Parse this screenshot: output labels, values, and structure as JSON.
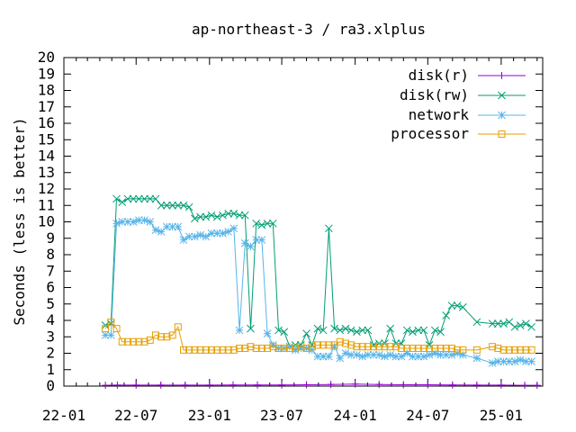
{
  "chart_data": {
    "type": "line",
    "title": "ap-northeast-3 / ra3.xlplus",
    "xlabel": "",
    "ylabel": "Seconds (less is better)",
    "ylim": [
      0,
      20
    ],
    "yticks": [
      "0",
      "1",
      "2",
      "3",
      "4",
      "5",
      "6",
      "7",
      "8",
      "9",
      "10",
      "11",
      "12",
      "13",
      "14",
      "15",
      "16",
      "17",
      "18",
      "19",
      "20"
    ],
    "xlim": [
      "2022-01-01",
      "2025-04-15"
    ],
    "xticks": [
      {
        "date": "2022-01-01",
        "label": "22-01"
      },
      {
        "date": "2022-07-01",
        "label": "22-07"
      },
      {
        "date": "2023-01-01",
        "label": "23-01"
      },
      {
        "date": "2023-07-01",
        "label": "23-07"
      },
      {
        "date": "2024-01-01",
        "label": "24-01"
      },
      {
        "date": "2024-07-01",
        "label": "24-07"
      },
      {
        "date": "2025-01-01",
        "label": "25-01"
      }
    ],
    "grid": false,
    "legend_position": "top-right",
    "series": [
      {
        "name": "disk(r)",
        "color": "#9400d3",
        "marker": "plus",
        "points": [
          [
            "2022-04-15",
            0.05
          ],
          [
            "2022-05-15",
            0.06
          ],
          [
            "2022-07-01",
            0.06
          ],
          [
            "2022-09-01",
            0.06
          ],
          [
            "2022-11-01",
            0.06
          ],
          [
            "2023-01-01",
            0.06
          ],
          [
            "2023-03-01",
            0.07
          ],
          [
            "2023-05-01",
            0.07
          ],
          [
            "2023-07-01",
            0.07
          ],
          [
            "2023-09-01",
            0.08
          ],
          [
            "2023-11-01",
            0.1
          ],
          [
            "2024-01-01",
            0.12
          ],
          [
            "2024-03-01",
            0.1
          ],
          [
            "2024-05-01",
            0.08
          ],
          [
            "2024-07-01",
            0.08
          ],
          [
            "2024-09-01",
            0.07
          ],
          [
            "2024-11-01",
            0.06
          ],
          [
            "2025-01-01",
            0.06
          ],
          [
            "2025-03-01",
            0.05
          ],
          [
            "2025-04-01",
            0.05
          ]
        ]
      },
      {
        "name": "disk(rw)",
        "color": "#009e73",
        "marker": "cross",
        "points": [
          [
            "2022-04-15",
            3.7
          ],
          [
            "2022-04-29",
            3.8
          ],
          [
            "2022-05-13",
            11.4
          ],
          [
            "2022-05-27",
            11.2
          ],
          [
            "2022-06-10",
            11.4
          ],
          [
            "2022-06-24",
            11.4
          ],
          [
            "2022-07-08",
            11.4
          ],
          [
            "2022-07-22",
            11.4
          ],
          [
            "2022-08-05",
            11.4
          ],
          [
            "2022-08-19",
            11.4
          ],
          [
            "2022-09-02",
            11.0
          ],
          [
            "2022-09-16",
            11.0
          ],
          [
            "2022-09-30",
            11.0
          ],
          [
            "2022-10-14",
            11.0
          ],
          [
            "2022-10-28",
            11.0
          ],
          [
            "2022-11-11",
            10.9
          ],
          [
            "2022-11-25",
            10.2
          ],
          [
            "2022-12-09",
            10.3
          ],
          [
            "2022-12-23",
            10.3
          ],
          [
            "2023-01-06",
            10.4
          ],
          [
            "2023-01-20",
            10.3
          ],
          [
            "2023-02-03",
            10.4
          ],
          [
            "2023-02-17",
            10.5
          ],
          [
            "2023-03-03",
            10.5
          ],
          [
            "2023-03-17",
            10.4
          ],
          [
            "2023-03-31",
            10.4
          ],
          [
            "2023-04-14",
            3.5
          ],
          [
            "2023-04-28",
            9.9
          ],
          [
            "2023-05-12",
            9.8
          ],
          [
            "2023-05-26",
            9.9
          ],
          [
            "2023-06-09",
            9.9
          ],
          [
            "2023-06-23",
            3.4
          ],
          [
            "2023-07-07",
            3.3
          ],
          [
            "2023-07-21",
            2.4
          ],
          [
            "2023-08-04",
            2.5
          ],
          [
            "2023-08-18",
            2.5
          ],
          [
            "2023-09-01",
            3.2
          ],
          [
            "2023-09-15",
            2.5
          ],
          [
            "2023-09-29",
            3.5
          ],
          [
            "2023-10-13",
            3.4
          ],
          [
            "2023-10-27",
            9.6
          ],
          [
            "2023-11-10",
            3.5
          ],
          [
            "2023-11-24",
            3.4
          ],
          [
            "2023-12-08",
            3.5
          ],
          [
            "2023-12-22",
            3.4
          ],
          [
            "2024-01-05",
            3.3
          ],
          [
            "2024-01-19",
            3.4
          ],
          [
            "2024-02-02",
            3.4
          ],
          [
            "2024-02-16",
            2.5
          ],
          [
            "2024-03-01",
            2.6
          ],
          [
            "2024-03-15",
            2.6
          ],
          [
            "2024-03-29",
            3.5
          ],
          [
            "2024-04-12",
            2.6
          ],
          [
            "2024-04-26",
            2.6
          ],
          [
            "2024-05-10",
            3.4
          ],
          [
            "2024-05-24",
            3.3
          ],
          [
            "2024-06-07",
            3.4
          ],
          [
            "2024-06-21",
            3.4
          ],
          [
            "2024-07-05",
            2.5
          ],
          [
            "2024-07-19",
            3.4
          ],
          [
            "2024-08-02",
            3.3
          ],
          [
            "2024-08-16",
            4.3
          ],
          [
            "2024-08-30",
            4.9
          ],
          [
            "2024-09-13",
            4.9
          ],
          [
            "2024-09-27",
            4.8
          ],
          [
            "2024-11-01",
            3.9
          ],
          [
            "2024-12-10",
            3.8
          ],
          [
            "2024-12-24",
            3.8
          ],
          [
            "2025-01-07",
            3.8
          ],
          [
            "2025-01-21",
            3.9
          ],
          [
            "2025-02-04",
            3.6
          ],
          [
            "2025-02-18",
            3.7
          ],
          [
            "2025-03-04",
            3.8
          ],
          [
            "2025-03-18",
            3.6
          ]
        ]
      },
      {
        "name": "network",
        "color": "#56b4e9",
        "marker": "star",
        "points": [
          [
            "2022-04-15",
            3.1
          ],
          [
            "2022-04-29",
            3.1
          ],
          [
            "2022-05-13",
            9.9
          ],
          [
            "2022-05-27",
            10.0
          ],
          [
            "2022-06-10",
            10.0
          ],
          [
            "2022-06-24",
            10.0
          ],
          [
            "2022-07-08",
            10.1
          ],
          [
            "2022-07-22",
            10.1
          ],
          [
            "2022-08-05",
            10.0
          ],
          [
            "2022-08-19",
            9.5
          ],
          [
            "2022-09-02",
            9.4
          ],
          [
            "2022-09-16",
            9.7
          ],
          [
            "2022-09-30",
            9.7
          ],
          [
            "2022-10-14",
            9.7
          ],
          [
            "2022-10-28",
            8.9
          ],
          [
            "2022-11-11",
            9.1
          ],
          [
            "2022-11-25",
            9.1
          ],
          [
            "2022-12-09",
            9.2
          ],
          [
            "2022-12-23",
            9.1
          ],
          [
            "2023-01-06",
            9.3
          ],
          [
            "2023-01-20",
            9.3
          ],
          [
            "2023-02-03",
            9.3
          ],
          [
            "2023-02-17",
            9.4
          ],
          [
            "2023-03-03",
            9.6
          ],
          [
            "2023-03-17",
            3.4
          ],
          [
            "2023-03-31",
            8.7
          ],
          [
            "2023-04-14",
            8.5
          ],
          [
            "2023-04-28",
            8.9
          ],
          [
            "2023-05-12",
            8.9
          ],
          [
            "2023-05-26",
            3.2
          ],
          [
            "2023-06-09",
            2.5
          ],
          [
            "2023-06-23",
            2.3
          ],
          [
            "2023-07-07",
            2.3
          ],
          [
            "2023-07-21",
            2.4
          ],
          [
            "2023-08-04",
            2.2
          ],
          [
            "2023-08-18",
            2.3
          ],
          [
            "2023-09-01",
            2.3
          ],
          [
            "2023-09-15",
            2.2
          ],
          [
            "2023-09-29",
            1.8
          ],
          [
            "2023-10-13",
            1.8
          ],
          [
            "2023-10-27",
            1.8
          ],
          [
            "2023-11-10",
            2.4
          ],
          [
            "2023-11-24",
            1.7
          ],
          [
            "2023-12-08",
            2.0
          ],
          [
            "2023-12-22",
            1.9
          ],
          [
            "2024-01-05",
            1.9
          ],
          [
            "2024-01-19",
            1.8
          ],
          [
            "2024-02-02",
            1.9
          ],
          [
            "2024-02-16",
            1.9
          ],
          [
            "2024-03-01",
            1.9
          ],
          [
            "2024-03-15",
            1.8
          ],
          [
            "2024-03-29",
            1.9
          ],
          [
            "2024-04-12",
            1.8
          ],
          [
            "2024-04-26",
            1.8
          ],
          [
            "2024-05-10",
            2.0
          ],
          [
            "2024-05-24",
            1.8
          ],
          [
            "2024-06-07",
            1.8
          ],
          [
            "2024-06-21",
            1.8
          ],
          [
            "2024-07-05",
            1.9
          ],
          [
            "2024-07-19",
            2.0
          ],
          [
            "2024-08-02",
            1.9
          ],
          [
            "2024-08-16",
            1.9
          ],
          [
            "2024-08-30",
            1.9
          ],
          [
            "2024-09-13",
            2.0
          ],
          [
            "2024-09-27",
            1.9
          ],
          [
            "2024-11-01",
            1.7
          ],
          [
            "2024-12-10",
            1.4
          ],
          [
            "2024-12-24",
            1.5
          ],
          [
            "2025-01-07",
            1.5
          ],
          [
            "2025-01-21",
            1.5
          ],
          [
            "2025-02-04",
            1.5
          ],
          [
            "2025-02-18",
            1.6
          ],
          [
            "2025-03-04",
            1.5
          ],
          [
            "2025-03-18",
            1.5
          ]
        ]
      },
      {
        "name": "processor",
        "color": "#e69f00",
        "marker": "square",
        "points": [
          [
            "2022-04-15",
            3.5
          ],
          [
            "2022-04-29",
            3.9
          ],
          [
            "2022-05-13",
            3.5
          ],
          [
            "2022-05-27",
            2.7
          ],
          [
            "2022-06-10",
            2.7
          ],
          [
            "2022-06-24",
            2.7
          ],
          [
            "2022-07-08",
            2.7
          ],
          [
            "2022-07-22",
            2.7
          ],
          [
            "2022-08-05",
            2.8
          ],
          [
            "2022-08-19",
            3.1
          ],
          [
            "2022-09-02",
            3.0
          ],
          [
            "2022-09-16",
            3.0
          ],
          [
            "2022-09-30",
            3.1
          ],
          [
            "2022-10-14",
            3.6
          ],
          [
            "2022-10-28",
            2.2
          ],
          [
            "2022-11-11",
            2.2
          ],
          [
            "2022-11-25",
            2.2
          ],
          [
            "2022-12-09",
            2.2
          ],
          [
            "2022-12-23",
            2.2
          ],
          [
            "2023-01-06",
            2.2
          ],
          [
            "2023-01-20",
            2.2
          ],
          [
            "2023-02-03",
            2.2
          ],
          [
            "2023-02-17",
            2.2
          ],
          [
            "2023-03-03",
            2.2
          ],
          [
            "2023-03-17",
            2.3
          ],
          [
            "2023-03-31",
            2.3
          ],
          [
            "2023-04-14",
            2.4
          ],
          [
            "2023-04-28",
            2.3
          ],
          [
            "2023-05-12",
            2.3
          ],
          [
            "2023-05-26",
            2.3
          ],
          [
            "2023-06-09",
            2.4
          ],
          [
            "2023-06-23",
            2.3
          ],
          [
            "2023-07-07",
            2.3
          ],
          [
            "2023-07-21",
            2.3
          ],
          [
            "2023-08-04",
            2.3
          ],
          [
            "2023-08-18",
            2.4
          ],
          [
            "2023-09-01",
            2.3
          ],
          [
            "2023-09-15",
            2.4
          ],
          [
            "2023-09-29",
            2.5
          ],
          [
            "2023-10-13",
            2.5
          ],
          [
            "2023-10-27",
            2.5
          ],
          [
            "2023-11-10",
            2.5
          ],
          [
            "2023-11-24",
            2.7
          ],
          [
            "2023-12-08",
            2.6
          ],
          [
            "2023-12-22",
            2.5
          ],
          [
            "2024-01-05",
            2.4
          ],
          [
            "2024-01-19",
            2.4
          ],
          [
            "2024-02-02",
            2.4
          ],
          [
            "2024-02-16",
            2.4
          ],
          [
            "2024-03-01",
            2.4
          ],
          [
            "2024-03-15",
            2.4
          ],
          [
            "2024-03-29",
            2.4
          ],
          [
            "2024-04-12",
            2.4
          ],
          [
            "2024-04-26",
            2.3
          ],
          [
            "2024-05-10",
            2.3
          ],
          [
            "2024-05-24",
            2.3
          ],
          [
            "2024-06-07",
            2.3
          ],
          [
            "2024-06-21",
            2.3
          ],
          [
            "2024-07-05",
            2.3
          ],
          [
            "2024-07-19",
            2.3
          ],
          [
            "2024-08-02",
            2.3
          ],
          [
            "2024-08-16",
            2.3
          ],
          [
            "2024-08-30",
            2.3
          ],
          [
            "2024-09-13",
            2.2
          ],
          [
            "2024-09-27",
            2.2
          ],
          [
            "2024-11-01",
            2.2
          ],
          [
            "2024-12-10",
            2.4
          ],
          [
            "2024-12-24",
            2.3
          ],
          [
            "2025-01-07",
            2.2
          ],
          [
            "2025-01-21",
            2.2
          ],
          [
            "2025-02-04",
            2.2
          ],
          [
            "2025-02-18",
            2.2
          ],
          [
            "2025-03-04",
            2.2
          ],
          [
            "2025-03-18",
            2.2
          ]
        ]
      }
    ]
  }
}
